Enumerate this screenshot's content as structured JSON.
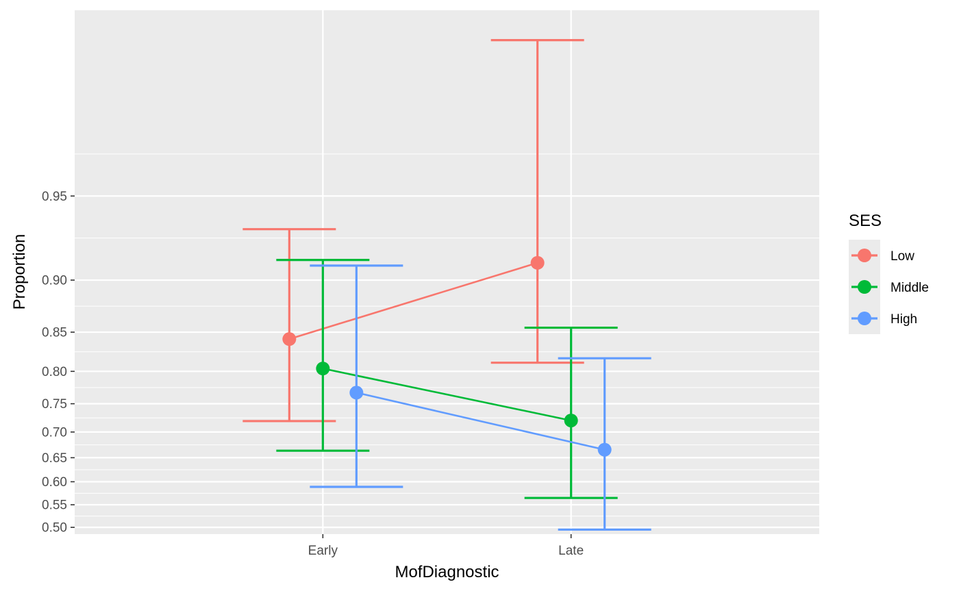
{
  "chart_data": {
    "type": "scatter",
    "xlabel": "MofDiagnostic",
    "ylabel": "Proportion",
    "categories": [
      "Early",
      "Late"
    ],
    "y_ticks": [
      "0.50",
      "0.55",
      "0.60",
      "0.65",
      "0.70",
      "0.75",
      "0.80",
      "0.85",
      "0.90",
      "0.95"
    ],
    "y_scale": "logit",
    "ylim": [
      0.485,
      0.99
    ],
    "grid": true,
    "legend": {
      "title": "SES",
      "position": "right",
      "entries": [
        "Low",
        "Middle",
        "High"
      ]
    },
    "series": [
      {
        "name": "Low",
        "color": "#F8766D",
        "values": [
          0.842,
          0.913
        ],
        "lower": [
          0.72,
          0.812
        ],
        "upper": [
          0.934,
          0.987
        ]
      },
      {
        "name": "Middle",
        "color": "#00BA38",
        "values": [
          0.804,
          0.721
        ],
        "lower": [
          0.664,
          0.565
        ],
        "upper": [
          0.915,
          0.855
        ]
      },
      {
        "name": "High",
        "color": "#619CFF",
        "values": [
          0.768,
          0.666
        ],
        "lower": [
          0.589,
          0.495
        ],
        "upper": [
          0.911,
          0.818
        ]
      }
    ]
  }
}
